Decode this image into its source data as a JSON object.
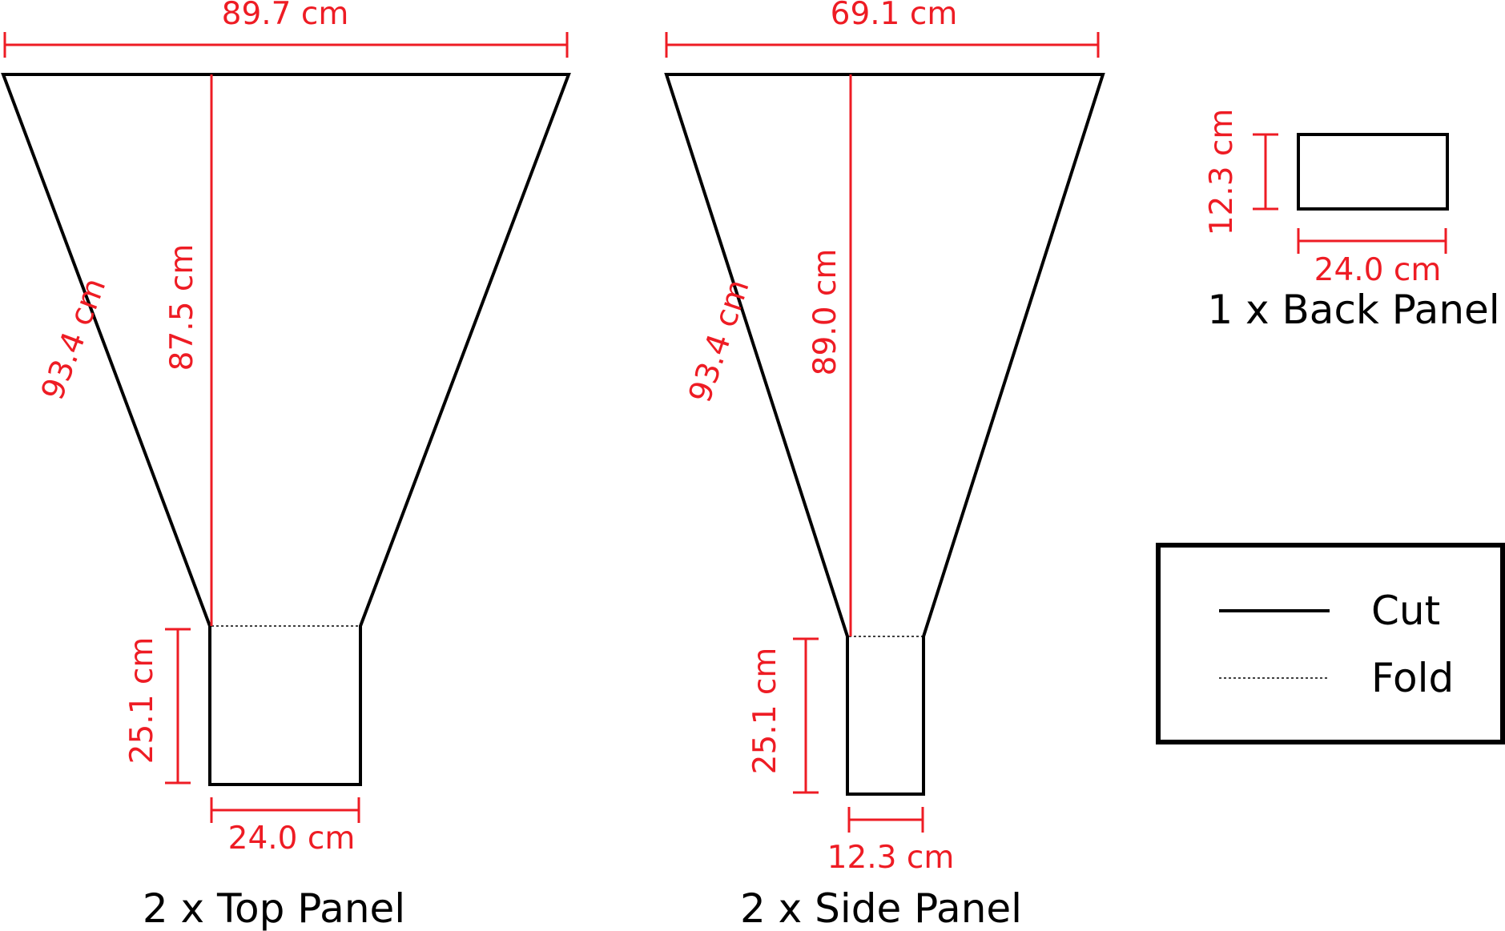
{
  "colors": {
    "cut_line": "#000000",
    "dimension": "#ee1c24",
    "background": "#ffffff"
  },
  "top_panel": {
    "caption": "2 x Top Panel",
    "top_width": "89.7 cm",
    "height": "87.5 cm",
    "slant": "93.4 cm",
    "flap_height": "25.1 cm",
    "flap_width": "24.0 cm"
  },
  "side_panel": {
    "caption": "2 x Side Panel",
    "top_width": "69.1 cm",
    "height": "89.0 cm",
    "slant": "93.4 cm",
    "flap_height": "25.1 cm",
    "flap_width": "12.3 cm"
  },
  "back_panel": {
    "caption": "1 x Back Panel",
    "height": "12.3 cm",
    "width": "24.0 cm"
  },
  "legend": {
    "items": [
      {
        "label": "Cut",
        "style": "solid"
      },
      {
        "label": "Fold",
        "style": "dotted"
      }
    ]
  }
}
